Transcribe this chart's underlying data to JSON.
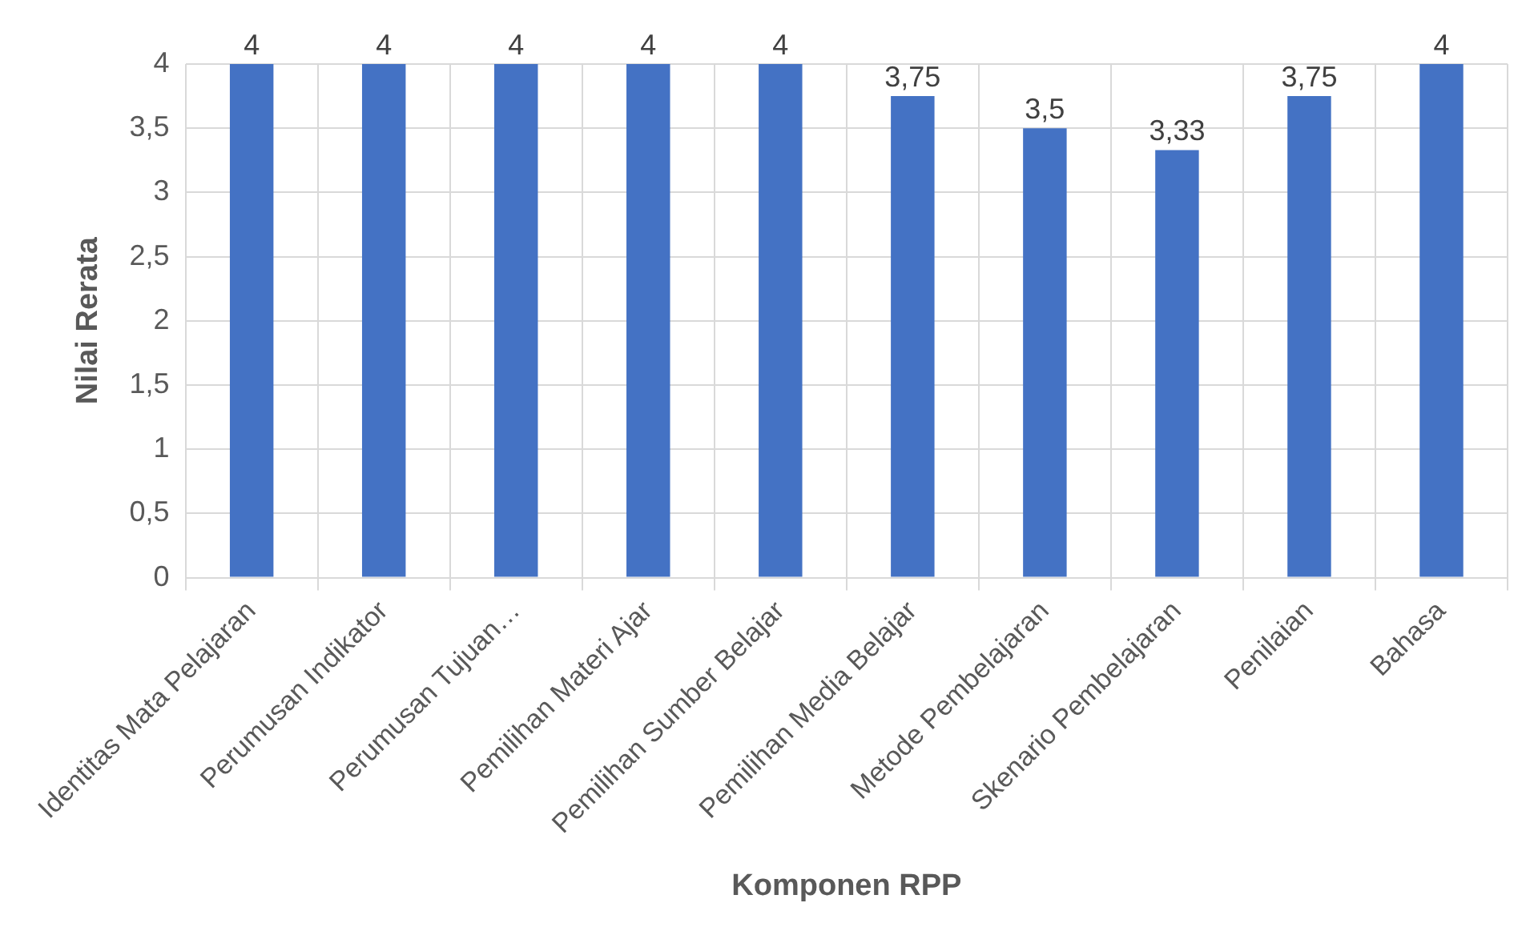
{
  "chart_data": {
    "type": "bar",
    "xlabel": "Komponen RPP",
    "ylabel": "Nilai Rerata",
    "categories": [
      "Identitas Mata Pelajaran",
      "Perumusan Indikator",
      "Perumusan Tujuan…",
      "Pemilihan Materi Ajar",
      "Pemilihan Sumber Belajar",
      "Pemilihan Media Belajar",
      "Metode Pembelajaran",
      "Skenario Pembelajaran",
      "Penilaian",
      "Bahasa"
    ],
    "values": [
      4,
      4,
      4,
      4,
      4,
      3.75,
      3.5,
      3.33,
      3.75,
      4
    ],
    "value_labels": [
      "4",
      "4",
      "4",
      "4",
      "4",
      "3,75",
      "3,5",
      "3,33",
      "3,75",
      "4"
    ],
    "color": "#4472c4",
    "ylim": [
      0,
      4
    ],
    "yticks": [
      0,
      {
        "value": 0.5,
        "label": "0,5"
      },
      1,
      {
        "value": 1.5,
        "label": "1,5"
      },
      2,
      {
        "value": 2.5,
        "label": "2,5"
      },
      3,
      {
        "value": 3.5,
        "label": "3,5"
      },
      4
    ],
    "grid": true,
    "legend": false
  }
}
